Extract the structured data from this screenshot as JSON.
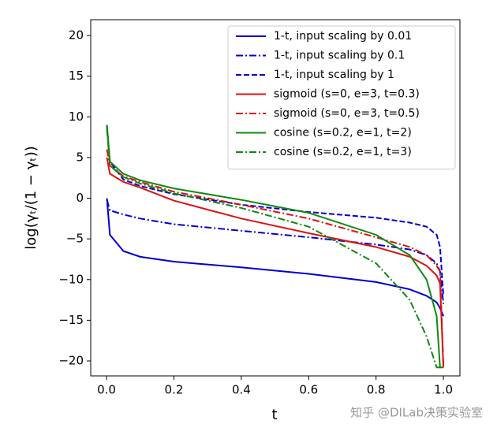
{
  "chart_data": {
    "type": "line",
    "xlabel": "t",
    "ylabel": "log(γₜ/(1 − γₜ))",
    "watermark": "知乎 @DILab决策实验室",
    "legend": "upper right",
    "xlim": [
      -0.047,
      1.049
    ],
    "ylim": [
      -21.84,
      21.94
    ],
    "xticks": [
      {
        "value": 0,
        "label": "0.0"
      },
      {
        "value": 0.2,
        "label": "0.2"
      },
      {
        "value": 0.4,
        "label": "0.4"
      },
      {
        "value": 0.6,
        "label": "0.6"
      },
      {
        "value": 0.8,
        "label": "0.8"
      },
      {
        "value": 1,
        "label": "1.0"
      }
    ],
    "yticks": [
      {
        "value": -20,
        "label": "−20"
      },
      {
        "value": -15,
        "label": "−15"
      },
      {
        "value": -10,
        "label": "−10"
      },
      {
        "value": -5,
        "label": "−5"
      },
      0,
      5,
      10,
      15,
      20
    ],
    "x": [
      0.001,
      0.01,
      0.05,
      0.1,
      0.2,
      0.4,
      0.6,
      0.8,
      0.9,
      0.95,
      0.98,
      0.99,
      1.0
    ],
    "series": [
      {
        "name": "1-t, input scaling by 0.01",
        "color": "#0000cc",
        "dash": "solid",
        "values": [
          0,
          -4.5,
          -6.5,
          -7.2,
          -7.8,
          -8.5,
          -9.3,
          -10.3,
          -11.2,
          -12,
          -12.8,
          -13.5,
          -14.5
        ]
      },
      {
        "name": "1-t, input scaling by 0.1",
        "color": "#0000cc",
        "dash": "dashdot",
        "values": [
          -0.2,
          -1.5,
          -2,
          -2.5,
          -3.2,
          -4,
          -4.8,
          -5.7,
          -6.3,
          -7,
          -8,
          -9,
          -13
        ]
      },
      {
        "name": "1-t, input scaling by 1",
        "color": "#0000cc",
        "dash": "dashed",
        "values": [
          9,
          4.5,
          2.3,
          1.5,
          0.5,
          -0.8,
          -1.7,
          -2.4,
          -3,
          -3.5,
          -4.5,
          -6,
          -12
        ]
      },
      {
        "name": "sigmoid (s=0, e=3, t=0.3)",
        "color": "#dd1111",
        "dash": "solid",
        "values": [
          5,
          3,
          2,
          1.3,
          -0.3,
          -2.5,
          -4.3,
          -6,
          -7.2,
          -8.3,
          -9.5,
          -10.5,
          -20.8
        ]
      },
      {
        "name": "sigmoid (s=0, e=3, t=0.5)",
        "color": "#dd1111",
        "dash": "dashdot",
        "values": [
          6,
          4,
          2.7,
          2,
          0.8,
          -0.8,
          -2.5,
          -4.8,
          -6,
          -7,
          -8.3,
          -9,
          -20.8
        ]
      },
      {
        "name": "cosine (s=0.2, e=1, t=2)",
        "color": "#118811",
        "dash": "solid",
        "values": [
          9,
          4.5,
          3,
          2.2,
          1.2,
          -0.2,
          -1.8,
          -4.5,
          -7,
          -10,
          -14.5,
          -20.8,
          -20.8
        ]
      },
      {
        "name": "cosine (s=0.2, e=1, t=3)",
        "color": "#118811",
        "dash": "dashdot",
        "values": [
          8.5,
          4,
          2.6,
          1.8,
          0.6,
          -1.2,
          -3.5,
          -8,
          -12.5,
          -17,
          -20.8,
          -20.8,
          -20.8
        ]
      }
    ]
  }
}
